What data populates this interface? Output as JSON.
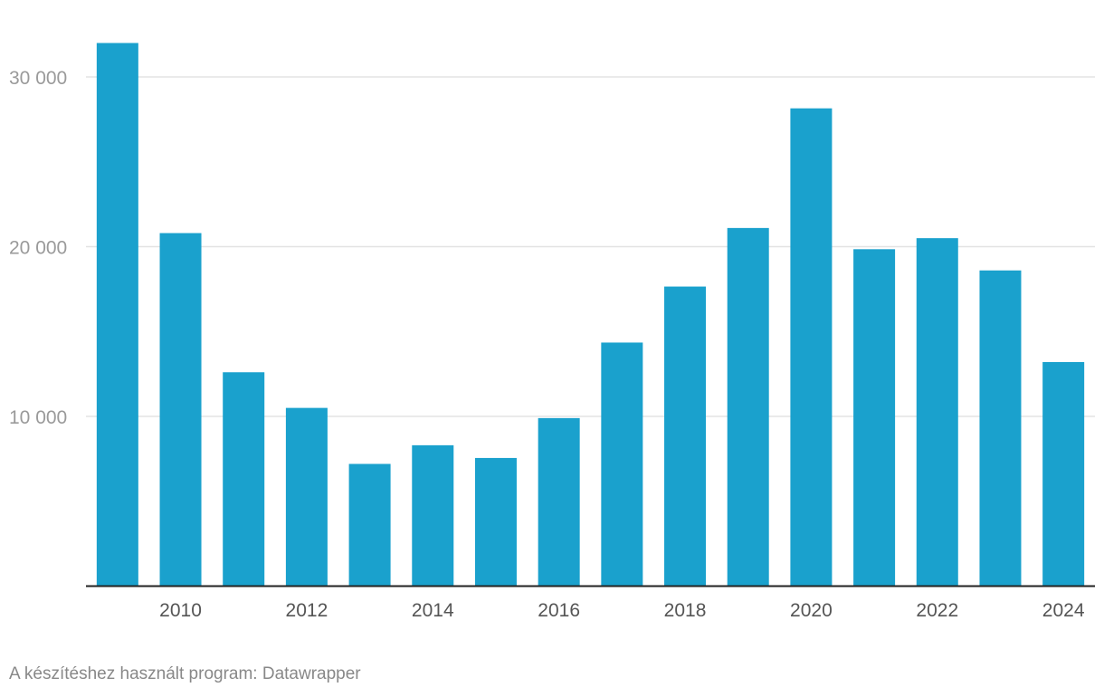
{
  "chart_data": {
    "type": "bar",
    "title": "",
    "xlabel": "",
    "ylabel": "",
    "categories": [
      "2009",
      "2010",
      "2011",
      "2012",
      "2013",
      "2014",
      "2015",
      "2016",
      "2017",
      "2018",
      "2019",
      "2020",
      "2021",
      "2022",
      "2023",
      "2024"
    ],
    "values": [
      32000,
      20800,
      12600,
      10500,
      7200,
      8300,
      7550,
      9900,
      14350,
      17650,
      21100,
      28150,
      19850,
      20500,
      18600,
      13200
    ],
    "ylim": [
      0,
      33000
    ],
    "yticks": [
      10000,
      20000,
      30000
    ],
    "ytick_labels": [
      "10 000",
      "20 000",
      "30 000"
    ],
    "xtick_labels": [
      "2010",
      "2012",
      "2014",
      "2016",
      "2018",
      "2020",
      "2022",
      "2024"
    ],
    "grid": true,
    "legend": "none",
    "bar_color": "#1aa1cd",
    "grid_color": "#e3e3e3",
    "axis_color": "#222222"
  },
  "footer": {
    "credit": "A készítéshez használt program: Datawrapper"
  }
}
